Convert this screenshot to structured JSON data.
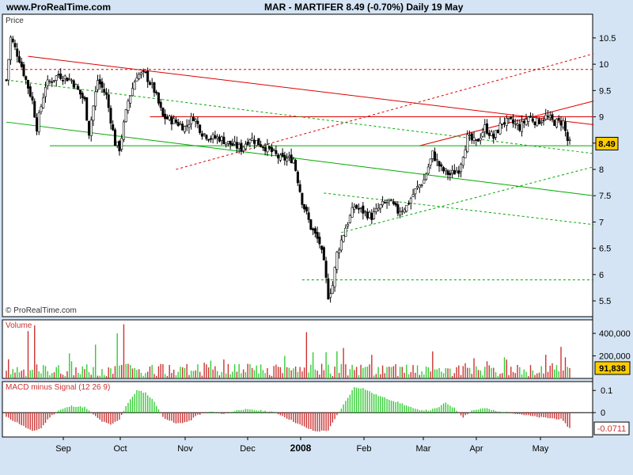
{
  "header": {
    "site": "www.ProRealTime.com",
    "title": "MAR - MARTIFER    8.49  (-0.70%)    Daily  19 May"
  },
  "colors": {
    "background": "#d4e4f4",
    "panel": "#ffffff",
    "up": "#33cc33",
    "down": "#cc3333",
    "trend_red": "#dd0000",
    "trend_green": "#00aa00",
    "price_badge": "#ffcc00"
  },
  "chart_data": [
    {
      "type": "candlestick",
      "panel_label": "Price",
      "watermark": "© ProRealTime.com",
      "x_labels": [
        "Sep",
        "Oct",
        "Nov",
        "Dec",
        "2008",
        "Feb",
        "Mar",
        "Apr",
        "May"
      ],
      "y_ticks": [
        10.5,
        10,
        9.5,
        9,
        8.5,
        8,
        7.5,
        7,
        6.5,
        6,
        5.5
      ],
      "ylim": [
        5.2,
        10.95
      ],
      "last_price": "8.49",
      "close_path": [
        [
          0,
          9.7
        ],
        [
          2,
          10.5
        ],
        [
          6,
          10.1
        ],
        [
          12,
          9.3
        ],
        [
          14,
          8.8
        ],
        [
          18,
          9.6
        ],
        [
          24,
          9.8
        ],
        [
          30,
          9.7
        ],
        [
          36,
          9.3
        ],
        [
          38,
          8.7
        ],
        [
          42,
          9.7
        ],
        [
          46,
          9.4
        ],
        [
          50,
          8.5
        ],
        [
          52,
          8.4
        ],
        [
          56,
          9.3
        ],
        [
          60,
          9.8
        ],
        [
          64,
          9.8
        ],
        [
          68,
          9.5
        ],
        [
          72,
          9.0
        ],
        [
          78,
          8.9
        ],
        [
          82,
          8.8
        ],
        [
          86,
          9.0
        ],
        [
          90,
          8.7
        ],
        [
          94,
          8.6
        ],
        [
          98,
          8.6
        ],
        [
          102,
          8.5
        ],
        [
          108,
          8.4
        ],
        [
          112,
          8.6
        ],
        [
          116,
          8.5
        ],
        [
          120,
          8.4
        ],
        [
          126,
          8.2
        ],
        [
          132,
          8.2
        ],
        [
          136,
          7.4
        ],
        [
          140,
          6.9
        ],
        [
          144,
          6.6
        ],
        [
          146,
          6.2
        ],
        [
          148,
          5.6
        ],
        [
          150,
          5.8
        ],
        [
          152,
          6.4
        ],
        [
          156,
          6.9
        ],
        [
          160,
          7.3
        ],
        [
          164,
          7.2
        ],
        [
          168,
          7.1
        ],
        [
          172,
          7.3
        ],
        [
          176,
          7.4
        ],
        [
          180,
          7.2
        ],
        [
          184,
          7.3
        ],
        [
          188,
          7.6
        ],
        [
          192,
          7.8
        ],
        [
          196,
          8.3
        ],
        [
          200,
          8.0
        ],
        [
          204,
          7.9
        ],
        [
          208,
          8.0
        ],
        [
          212,
          8.6
        ],
        [
          216,
          8.5
        ],
        [
          220,
          8.8
        ],
        [
          224,
          8.6
        ],
        [
          228,
          8.9
        ],
        [
          232,
          8.9
        ],
        [
          236,
          8.8
        ],
        [
          240,
          9.0
        ],
        [
          244,
          8.9
        ],
        [
          248,
          9.0
        ],
        [
          252,
          8.9
        ],
        [
          256,
          8.9
        ],
        [
          258,
          8.55
        ],
        [
          259,
          8.49
        ]
      ],
      "trendlines": [
        {
          "color": "red",
          "style": "solid",
          "from": [
            10,
            10.15
          ],
          "to": [
            270,
            8.85
          ]
        },
        {
          "color": "red",
          "style": "solid",
          "from": [
            66,
            9.0
          ],
          "to": [
            270,
            9.0
          ]
        },
        {
          "color": "red",
          "style": "solid",
          "from": [
            190,
            8.45
          ],
          "to": [
            270,
            9.3
          ]
        },
        {
          "color": "red",
          "style": "dashed",
          "from": [
            0,
            9.9
          ],
          "to": [
            270,
            9.9
          ]
        },
        {
          "color": "red",
          "style": "dashed",
          "from": [
            78,
            8.0
          ],
          "to": [
            270,
            10.2
          ]
        },
        {
          "color": "green",
          "style": "solid",
          "from": [
            0,
            8.9
          ],
          "to": [
            270,
            7.5
          ]
        },
        {
          "color": "green",
          "style": "solid",
          "from": [
            20,
            8.45
          ],
          "to": [
            270,
            8.45
          ]
        },
        {
          "color": "green",
          "style": "dashed",
          "from": [
            0,
            9.7
          ],
          "to": [
            270,
            8.3
          ]
        },
        {
          "color": "green",
          "style": "dashed",
          "from": [
            146,
            7.55
          ],
          "to": [
            270,
            6.95
          ]
        },
        {
          "color": "green",
          "style": "dashed",
          "from": [
            154,
            6.8
          ],
          "to": [
            270,
            8.05
          ]
        },
        {
          "color": "green",
          "style": "dashed",
          "from": [
            136,
            5.9
          ],
          "to": [
            270,
            5.9
          ]
        }
      ]
    },
    {
      "type": "bar",
      "panel_label": "Volume",
      "y_ticks": [
        "400,000",
        "200,000"
      ],
      "y_tick_values": [
        400000,
        200000
      ],
      "ylim": [
        0,
        520000
      ],
      "last_value": "91,838",
      "highlighted_bars": [
        [
          1,
          170000
        ],
        [
          10,
          420000
        ],
        [
          13,
          470000
        ],
        [
          41,
          300000
        ],
        [
          51,
          400000
        ],
        [
          54,
          480000
        ],
        [
          138,
          410000
        ],
        [
          155,
          270000
        ],
        [
          196,
          240000
        ],
        [
          248,
          210000
        ],
        [
          255,
          280000
        ],
        [
          259,
          91838
        ]
      ]
    },
    {
      "type": "bar",
      "panel_label": "MACD minus Signal (12 26 9)",
      "y_ticks": [
        "0.1",
        "0"
      ],
      "y_tick_values": [
        0.1,
        0
      ],
      "ylim": [
        -0.11,
        0.14
      ],
      "last_value": "-0.0711",
      "anchors": [
        [
          0,
          -0.02
        ],
        [
          6,
          -0.05
        ],
        [
          12,
          -0.085
        ],
        [
          16,
          -0.07
        ],
        [
          20,
          -0.02
        ],
        [
          24,
          0.01
        ],
        [
          30,
          0.03
        ],
        [
          36,
          0.025
        ],
        [
          40,
          -0.01
        ],
        [
          44,
          -0.04
        ],
        [
          48,
          -0.055
        ],
        [
          52,
          -0.03
        ],
        [
          55,
          0.03
        ],
        [
          60,
          0.1
        ],
        [
          64,
          0.09
        ],
        [
          68,
          0.05
        ],
        [
          72,
          -0.02
        ],
        [
          78,
          -0.05
        ],
        [
          84,
          -0.04
        ],
        [
          88,
          -0.01
        ],
        [
          94,
          0.005
        ],
        [
          100,
          -0.005
        ],
        [
          108,
          0.015
        ],
        [
          116,
          0.01
        ],
        [
          122,
          0.005
        ],
        [
          126,
          -0.01
        ],
        [
          130,
          -0.03
        ],
        [
          136,
          -0.06
        ],
        [
          142,
          -0.085
        ],
        [
          148,
          -0.08
        ],
        [
          154,
          0.02
        ],
        [
          160,
          0.115
        ],
        [
          164,
          0.11
        ],
        [
          170,
          0.08
        ],
        [
          176,
          0.06
        ],
        [
          182,
          0.04
        ],
        [
          188,
          0.015
        ],
        [
          194,
          0.01
        ],
        [
          198,
          0.02
        ],
        [
          202,
          0.045
        ],
        [
          206,
          0.02
        ],
        [
          210,
          -0.02
        ],
        [
          214,
          0.01
        ],
        [
          220,
          0.02
        ],
        [
          226,
          0.005
        ],
        [
          232,
          0.0
        ],
        [
          238,
          -0.01
        ],
        [
          244,
          -0.02
        ],
        [
          250,
          -0.025
        ],
        [
          255,
          -0.03
        ],
        [
          259,
          -0.0711
        ]
      ]
    }
  ]
}
